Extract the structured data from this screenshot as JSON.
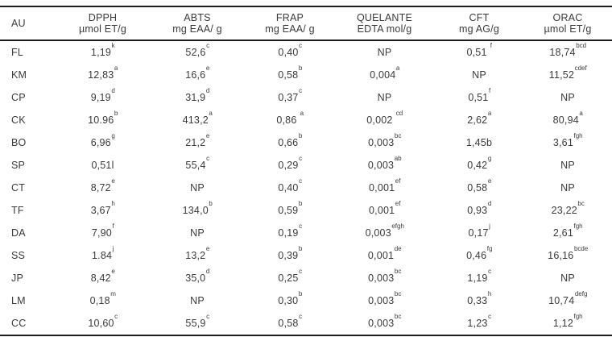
{
  "table": {
    "header": {
      "au": "AU",
      "columns": [
        {
          "line1": "DPPH",
          "line2": "µmol ET/g"
        },
        {
          "line1": "ABTS",
          "line2": "mg EAA/ g"
        },
        {
          "line1": "FRAP",
          "line2": "mg EAA/ g"
        },
        {
          "line1": "QUELANTE",
          "line2": "EDTA mol/g"
        },
        {
          "line1": "CFT",
          "line2": "mg AG/g"
        },
        {
          "line1": "ORAC",
          "line2": "µmol ET/g"
        }
      ]
    },
    "rows": [
      {
        "au": "FL",
        "cells": [
          {
            "v": "1,19",
            "s": "k"
          },
          {
            "v": "52,6",
            "s": "c"
          },
          {
            "v": "0,40",
            "s": "c"
          },
          {
            "v": "NP",
            "s": ""
          },
          {
            "v": "0,51 ",
            "s": "f"
          },
          {
            "v": "18,74",
            "s": "bcd"
          }
        ]
      },
      {
        "au": "KM",
        "cells": [
          {
            "v": "12,83",
            "s": "a"
          },
          {
            "v": "16,6",
            "s": "e"
          },
          {
            "v": "0,58",
            "s": "b"
          },
          {
            "v": "0,004",
            "s": "a"
          },
          {
            "v": "NP",
            "s": ""
          },
          {
            "v": "11,52",
            "s": "cdef"
          }
        ]
      },
      {
        "au": "CP",
        "cells": [
          {
            "v": "9,19",
            "s": "d"
          },
          {
            "v": "31,9",
            "s": "d"
          },
          {
            "v": "0,37",
            "s": "c"
          },
          {
            "v": "NP",
            "s": ""
          },
          {
            "v": "0,51",
            "s": "f"
          },
          {
            "v": "NP",
            "s": ""
          }
        ]
      },
      {
        "au": "CK",
        "cells": [
          {
            "v": "10.96",
            "s": "b"
          },
          {
            "v": "413,2",
            "s": "a"
          },
          {
            "v": "0,86 ",
            "s": "a"
          },
          {
            "v": "0,002 ",
            "s": "cd"
          },
          {
            "v": "2,62",
            "s": "a"
          },
          {
            "v": "80,94",
            "s": "a"
          }
        ]
      },
      {
        "au": "BO",
        "cells": [
          {
            "v": "6,96",
            "s": "g"
          },
          {
            "v": "21,2",
            "s": "e"
          },
          {
            "v": "0,66",
            "s": "b"
          },
          {
            "v": "0,003",
            "s": "bc"
          },
          {
            "v": "1,45b",
            "s": ""
          },
          {
            "v": "3,61",
            "s": "fgh"
          }
        ]
      },
      {
        "au": "SP",
        "cells": [
          {
            "v": "0,51l",
            "s": ""
          },
          {
            "v": "55,4",
            "s": "c"
          },
          {
            "v": "0,29",
            "s": "c"
          },
          {
            "v": "0,003",
            "s": "ab"
          },
          {
            "v": "0,42",
            "s": "g"
          },
          {
            "v": "NP",
            "s": ""
          }
        ]
      },
      {
        "au": "CT",
        "cells": [
          {
            "v": "8,72",
            "s": "e"
          },
          {
            "v": "NP",
            "s": ""
          },
          {
            "v": "0,40",
            "s": "c"
          },
          {
            "v": "0,001",
            "s": "ef"
          },
          {
            "v": "0,58",
            "s": "e"
          },
          {
            "v": "NP",
            "s": ""
          }
        ]
      },
      {
        "au": "TF",
        "cells": [
          {
            "v": "3,67",
            "s": "h"
          },
          {
            "v": "134,0",
            "s": "b"
          },
          {
            "v": "0,59",
            "s": "b"
          },
          {
            "v": "0,001",
            "s": "ef"
          },
          {
            "v": "0,93",
            "s": "d"
          },
          {
            "v": "23,22",
            "s": "bc"
          }
        ]
      },
      {
        "au": "DA",
        "cells": [
          {
            "v": "7,90",
            "s": "f"
          },
          {
            "v": "NP",
            "s": ""
          },
          {
            "v": "0,19",
            "s": "c"
          },
          {
            "v": "0,003",
            "s": "efgh"
          },
          {
            "v": "0,17",
            "s": "j"
          },
          {
            "v": "2,61",
            "s": "fgh"
          }
        ]
      },
      {
        "au": "SS",
        "cells": [
          {
            "v": "1.84",
            "s": "j"
          },
          {
            "v": "13,2",
            "s": "e"
          },
          {
            "v": "0,39",
            "s": "b"
          },
          {
            "v": "0,001",
            "s": "de"
          },
          {
            "v": "0,46",
            "s": "fg"
          },
          {
            "v": "16,16",
            "s": "bcde"
          }
        ]
      },
      {
        "au": "JP",
        "cells": [
          {
            "v": "8,42",
            "s": "e"
          },
          {
            "v": "35,0",
            "s": "d"
          },
          {
            "v": "0,25",
            "s": "c"
          },
          {
            "v": "0,003",
            "s": "bc"
          },
          {
            "v": "1,19",
            "s": "c"
          },
          {
            "v": "NP",
            "s": ""
          }
        ]
      },
      {
        "au": "LM",
        "cells": [
          {
            "v": "0,18",
            "s": "m"
          },
          {
            "v": "NP",
            "s": ""
          },
          {
            "v": "0,30",
            "s": "b"
          },
          {
            "v": "0,003",
            "s": "bc"
          },
          {
            "v": "0,33",
            "s": "h"
          },
          {
            "v": "10,74",
            "s": "defg"
          }
        ]
      },
      {
        "au": "CC",
        "cells": [
          {
            "v": "10,60",
            "s": "c"
          },
          {
            "v": "55,9",
            "s": "c"
          },
          {
            "v": "0,58",
            "s": "c"
          },
          {
            "v": "0,003",
            "s": "bc"
          },
          {
            "v": "1,23",
            "s": "c"
          },
          {
            "v": "1,12",
            "s": "fgh"
          }
        ]
      }
    ]
  }
}
